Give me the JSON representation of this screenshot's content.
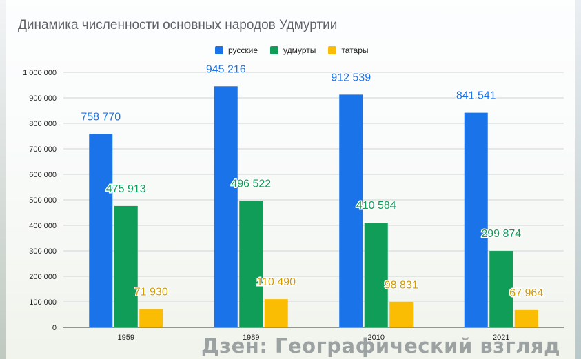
{
  "chart_data": {
    "type": "bar",
    "title": "Динамика численности основных народов Удмуртии",
    "categories": [
      "1959",
      "1989",
      "2010",
      "2021"
    ],
    "series": [
      {
        "name": "русские",
        "color": "#1a73e8",
        "label_color": "#1a73e8",
        "values": [
          758770,
          945216,
          912539,
          841541
        ],
        "labels": [
          "758 770",
          "945 216",
          "912 539",
          "841 541"
        ]
      },
      {
        "name": "удмурты",
        "color": "#0f9d58",
        "label_color": "#0f9d58",
        "values": [
          475913,
          496522,
          410584,
          299874
        ],
        "labels": [
          "475 913",
          "496 522",
          "410 584",
          "299 874"
        ]
      },
      {
        "name": "татары",
        "color": "#fbbc04",
        "label_color": "#d49b00",
        "values": [
          71930,
          110490,
          98831,
          67964
        ],
        "labels": [
          "71 930",
          "110 490",
          "98 831",
          "67 964"
        ]
      }
    ],
    "ylim": [
      0,
      1000000
    ],
    "yticks": [
      "0",
      "100 000",
      "200 000",
      "300 000",
      "400 000",
      "500 000",
      "600 000",
      "700 000",
      "800 000",
      "900 000",
      "1 000 000"
    ],
    "grid": true,
    "legend": "top-center"
  },
  "watermark": "Дзен: Географический взгляд"
}
